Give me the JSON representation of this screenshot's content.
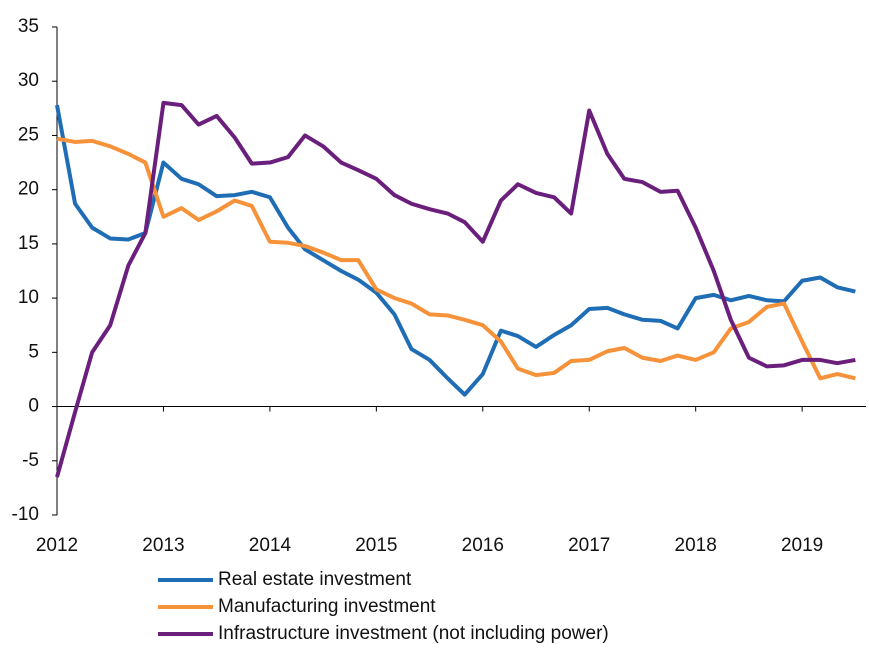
{
  "chart_data": {
    "type": "line",
    "x": [
      2012,
      2012.17,
      2012.33,
      2012.5,
      2012.67,
      2012.83,
      2013,
      2013.17,
      2013.33,
      2013.5,
      2013.67,
      2013.83,
      2014,
      2014.17,
      2014.33,
      2014.5,
      2014.67,
      2014.83,
      2015,
      2015.17,
      2015.33,
      2015.5,
      2015.67,
      2015.83,
      2016,
      2016.17,
      2016.33,
      2016.5,
      2016.67,
      2016.83,
      2017,
      2017.17,
      2017.33,
      2017.5,
      2017.67,
      2017.83,
      2018,
      2018.17,
      2018.33,
      2018.5,
      2018.67,
      2018.83,
      2019,
      2019.17,
      2019.33,
      2019.5
    ],
    "series": [
      {
        "name": "Real estate investment",
        "color": "#1f6db4",
        "values": [
          27.8,
          18.7,
          16.5,
          15.5,
          15.4,
          16.0,
          22.5,
          21.0,
          20.5,
          19.4,
          19.5,
          19.8,
          19.3,
          16.5,
          14.5,
          13.5,
          12.5,
          11.7,
          10.5,
          8.5,
          5.3,
          4.3,
          2.6,
          1.1,
          3.0,
          7.0,
          6.5,
          5.5,
          6.6,
          7.5,
          9.0,
          9.1,
          8.5,
          8.0,
          7.9,
          7.2,
          10.0,
          10.3,
          9.8,
          10.2,
          9.8,
          9.7,
          11.6,
          11.9,
          11.0,
          10.6
        ]
      },
      {
        "name": "Manufacturing investment",
        "color": "#f5923a",
        "values": [
          24.7,
          24.4,
          24.5,
          24.0,
          23.3,
          22.5,
          17.5,
          18.3,
          17.2,
          18.0,
          19.0,
          18.5,
          15.2,
          15.1,
          14.8,
          14.2,
          13.5,
          13.5,
          10.8,
          10.0,
          9.5,
          8.5,
          8.4,
          8.0,
          7.5,
          6.0,
          3.5,
          2.9,
          3.1,
          4.2,
          4.3,
          5.1,
          5.4,
          4.5,
          4.2,
          4.7,
          4.3,
          5.0,
          7.2,
          7.8,
          9.2,
          9.5,
          6.0,
          2.6,
          3.0,
          2.6
        ]
      },
      {
        "name": "Infrastructure investment (not including power)",
        "color": "#6b1f7c",
        "values": [
          -6.5,
          -0.5,
          5.0,
          7.5,
          13.0,
          16.0,
          28.0,
          27.8,
          26.0,
          26.8,
          24.8,
          22.4,
          22.5,
          23.0,
          25.0,
          24.0,
          22.5,
          21.8,
          21.0,
          19.5,
          18.7,
          18.2,
          17.8,
          17.0,
          15.2,
          19.0,
          20.5,
          19.7,
          19.3,
          17.8,
          27.3,
          23.3,
          21.0,
          20.7,
          19.8,
          19.9,
          16.5,
          12.5,
          8.0,
          4.5,
          3.7,
          3.8,
          4.3,
          4.3,
          4.0,
          4.3
        ]
      }
    ],
    "xlim": [
      2012,
      2019.6
    ],
    "xticks": [
      2012,
      2013,
      2014,
      2015,
      2016,
      2017,
      2018,
      2019
    ],
    "ylim": [
      -10,
      35
    ],
    "yticks": [
      -10,
      -5,
      0,
      5,
      10,
      15,
      20,
      25,
      30,
      35
    ],
    "legend": "bottom"
  }
}
